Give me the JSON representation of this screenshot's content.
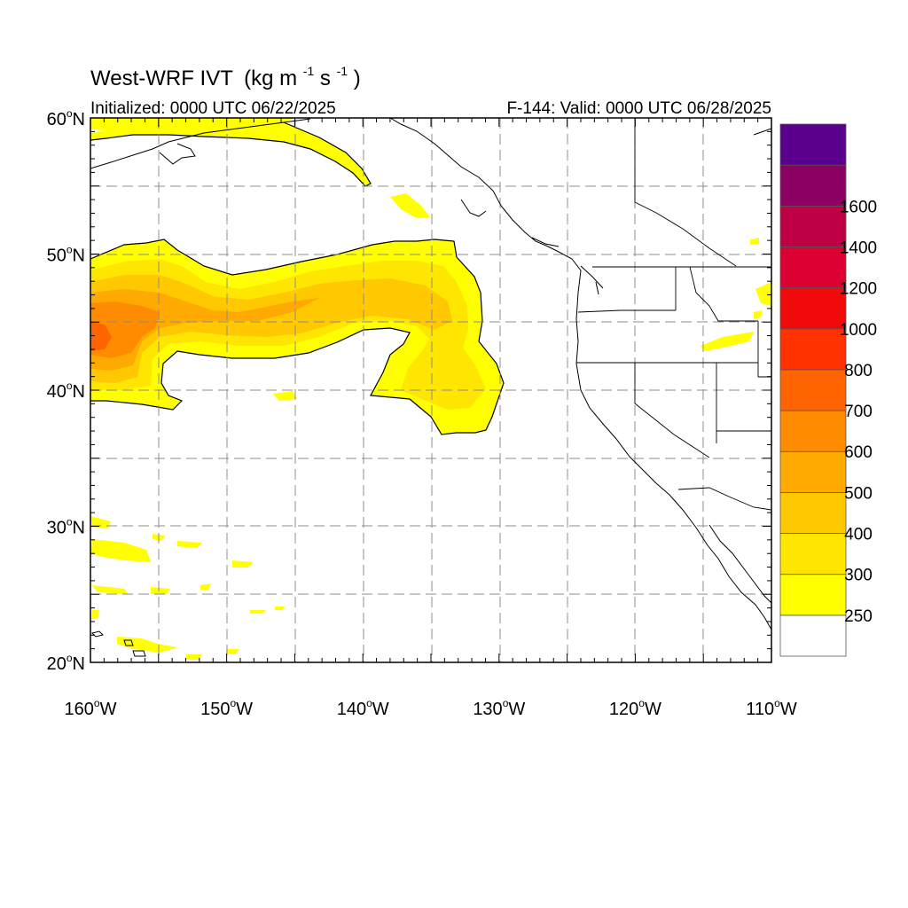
{
  "title": {
    "main": "West-WRF IVT",
    "units_open": "(kg m",
    "units_exp1": "-1",
    "units_mid": "s",
    "units_exp2": "-1",
    "units_close": ")"
  },
  "subtitle_left": "Initialized: 0000 UTC 06/22/2025",
  "subtitle_right": "F-144: Valid: 0000 UTC 06/28/2025",
  "degree_symbol": "o",
  "map": {
    "lon_range": [
      -160,
      -110
    ],
    "lat_range": [
      20,
      60
    ],
    "grid_lons": [
      -155,
      -150,
      -145,
      -140,
      -135,
      -130,
      -125,
      -120,
      -115
    ],
    "grid_lats": [
      25,
      30,
      35,
      40,
      45,
      50,
      55
    ],
    "lat_labels": [
      {
        "lat": 60,
        "num": "60",
        "hemi": "N"
      },
      {
        "lat": 50,
        "num": "50",
        "hemi": "N"
      },
      {
        "lat": 40,
        "num": "40",
        "hemi": "N"
      },
      {
        "lat": 30,
        "num": "30",
        "hemi": "N"
      },
      {
        "lat": 20,
        "num": "20",
        "hemi": "N"
      }
    ],
    "lon_labels": [
      {
        "lon": -160,
        "num": "160",
        "hemi": "W"
      },
      {
        "lon": -150,
        "num": "150",
        "hemi": "W"
      },
      {
        "lon": -140,
        "num": "140",
        "hemi": "W"
      },
      {
        "lon": -130,
        "num": "130",
        "hemi": "W"
      },
      {
        "lon": -120,
        "num": "120",
        "hemi": "W"
      },
      {
        "lon": -110,
        "num": "110",
        "hemi": "W"
      }
    ]
  },
  "colorbar": {
    "levels": [
      {
        "label": "",
        "color": "#ffffff"
      },
      {
        "label": "250",
        "color": "#ffff00"
      },
      {
        "label": "300",
        "color": "#ffe600"
      },
      {
        "label": "400",
        "color": "#ffc800"
      },
      {
        "label": "500",
        "color": "#ffaa00"
      },
      {
        "label": "600",
        "color": "#ff8c00"
      },
      {
        "label": "700",
        "color": "#ff6400"
      },
      {
        "label": "800",
        "color": "#ff3200"
      },
      {
        "label": "1000",
        "color": "#f00a0a"
      },
      {
        "label": "1200",
        "color": "#dc0032"
      },
      {
        "label": "1400",
        "color": "#c00046"
      },
      {
        "label": "1600",
        "color": "#8c0064"
      },
      {
        "label": "",
        "color": "#5a008c"
      }
    ]
  },
  "colors": {
    "ivt_250": "#ffff00",
    "ivt_300": "#ffe600",
    "ivt_400": "#ffc800",
    "ivt_500": "#ffaa00",
    "ivt_600": "#ff8c00",
    "ivt_700": "#ff6400",
    "grid": "#8c8c8c",
    "coast": "#000000"
  }
}
